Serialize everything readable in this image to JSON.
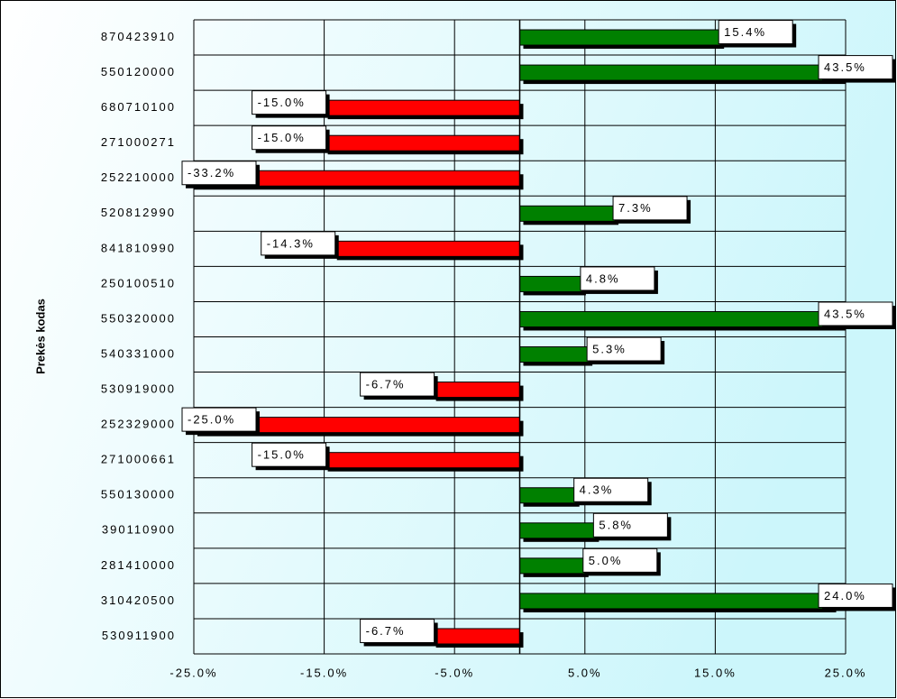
{
  "chart_data": {
    "type": "barh",
    "y_label": "Prekės kodas",
    "categories": [
      "870423910",
      "550120000",
      "680710100",
      "271000271",
      "252210000",
      "520812990",
      "841810990",
      "250100510",
      "550320000",
      "540331000",
      "530919000",
      "252329000",
      "271000661",
      "550130000",
      "390110900",
      "281410000",
      "310420500",
      "530911900"
    ],
    "values": [
      15.4,
      43.5,
      -15.0,
      -15.0,
      -33.2,
      7.3,
      -14.3,
      4.8,
      43.5,
      5.3,
      -6.7,
      -25.0,
      -15.0,
      4.3,
      5.8,
      5.0,
      24.0,
      -6.7
    ],
    "value_labels": [
      "15.4%",
      "43.5%",
      "-15.0%",
      "-15.0%",
      "-33.2%",
      "7.3%",
      "-14.3%",
      "4.8%",
      "43.5%",
      "5.3%",
      "-6.7%",
      "-25.0%",
      "-15.0%",
      "4.3%",
      "5.8%",
      "5.0%",
      "24.0%",
      "-6.7%"
    ],
    "positive_color": "#008000",
    "negative_color": "#ff0000",
    "xlim": [
      -25,
      25
    ],
    "xticks": [
      {
        "value": -25,
        "label": "-25.0%"
      },
      {
        "value": -15,
        "label": "-15.0%"
      },
      {
        "value": -5,
        "label": "-5.0%"
      },
      {
        "value": 5,
        "label": "5.0%"
      },
      {
        "value": 15,
        "label": "15.0%"
      },
      {
        "value": 25,
        "label": "25.0%"
      }
    ],
    "grid": true
  }
}
